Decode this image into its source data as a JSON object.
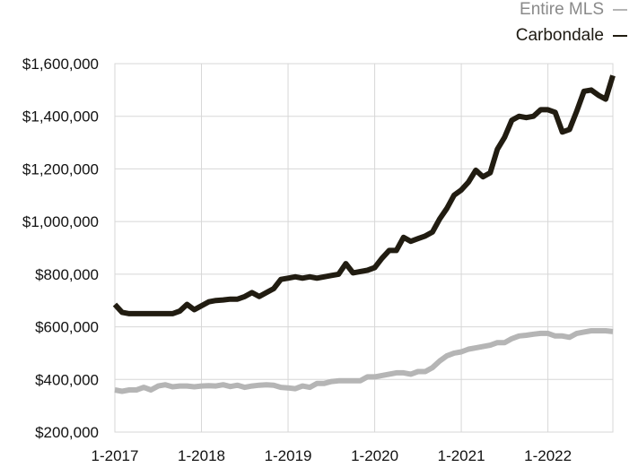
{
  "colors": {
    "entire_mls": "#b5b5b5",
    "carbondale": "#211c11",
    "grid": "#d7d7d7",
    "axis_text": "#111111"
  },
  "chart_data": {
    "type": "line",
    "title": "",
    "xlabel": "",
    "ylabel": "",
    "ylim": [
      200000,
      1600000
    ],
    "yticks": [
      200000,
      400000,
      600000,
      800000,
      1000000,
      1200000,
      1400000,
      1600000
    ],
    "ytick_labels": [
      "$200,000",
      "$400,000",
      "$600,000",
      "$800,000",
      "$1,000,000",
      "$1,200,000",
      "$1,400,000",
      "$1,600,000"
    ],
    "xlim": [
      0,
      69
    ],
    "xticks": [
      0,
      12,
      24,
      36,
      48,
      60
    ],
    "xtick_labels": [
      "1-2017",
      "1-2018",
      "1-2019",
      "1-2020",
      "1-2021",
      "1-2022"
    ],
    "grid": true,
    "legend_position": "top-right",
    "series": [
      {
        "name": "Entire MLS",
        "color": "#b5b5b5",
        "values": [
          360000,
          355000,
          360000,
          360000,
          370000,
          360000,
          375000,
          380000,
          372000,
          375000,
          375000,
          372000,
          375000,
          376000,
          375000,
          380000,
          373000,
          378000,
          370000,
          375000,
          378000,
          380000,
          378000,
          370000,
          368000,
          365000,
          375000,
          370000,
          385000,
          385000,
          392000,
          395000,
          395000,
          395000,
          395000,
          410000,
          410000,
          415000,
          420000,
          425000,
          425000,
          420000,
          430000,
          430000,
          445000,
          470000,
          490000,
          500000,
          505000,
          515000,
          520000,
          525000,
          530000,
          540000,
          540000,
          555000,
          565000,
          568000,
          572000,
          575000,
          575000,
          565000,
          565000,
          560000,
          575000,
          580000,
          585000,
          585000,
          585000,
          582000
        ]
      },
      {
        "name": "Carbondale",
        "color": "#211c11",
        "values": [
          685000,
          655000,
          650000,
          650000,
          650000,
          650000,
          650000,
          650000,
          650000,
          660000,
          685000,
          665000,
          680000,
          695000,
          700000,
          702000,
          705000,
          705000,
          715000,
          730000,
          715000,
          730000,
          745000,
          780000,
          785000,
          790000,
          785000,
          790000,
          785000,
          790000,
          795000,
          800000,
          840000,
          805000,
          810000,
          815000,
          825000,
          860000,
          890000,
          890000,
          940000,
          925000,
          935000,
          945000,
          960000,
          1010000,
          1050000,
          1100000,
          1120000,
          1150000,
          1195000,
          1170000,
          1185000,
          1275000,
          1320000,
          1385000,
          1400000,
          1395000,
          1400000,
          1425000,
          1425000,
          1415000,
          1340000,
          1350000,
          1420000,
          1495000,
          1500000,
          1480000,
          1465000,
          1555000
        ]
      }
    ]
  }
}
